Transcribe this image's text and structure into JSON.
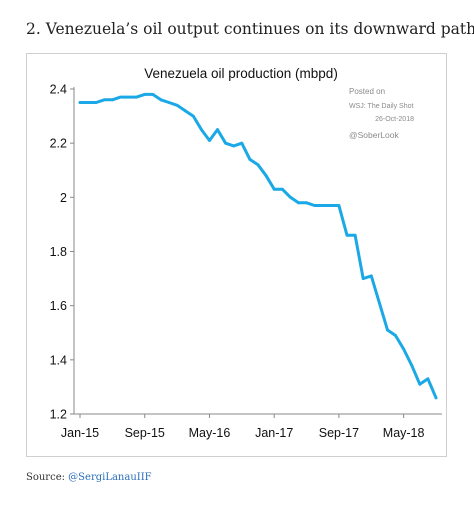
{
  "article": {
    "heading": "2. Venezuela’s oil output continues on its downward path.",
    "source_label": "Source: ",
    "source_link": "@SergiLanauIIF"
  },
  "chart_data": {
    "type": "line",
    "title": "Venezuela oil production (mbpd)",
    "xlabel": "",
    "ylabel": "",
    "ylim": [
      1.2,
      2.4
    ],
    "yticks": [
      1.2,
      1.4,
      1.6,
      1.8,
      2,
      2.2,
      2.4
    ],
    "ytick_labels": [
      "1.2",
      "1.4",
      "1.6",
      "1.8",
      "2",
      "2.2",
      "2.4"
    ],
    "x_tick_labels": [
      {
        "label": "Jan-15",
        "index": 0
      },
      {
        "label": "Sep-15",
        "index": 8
      },
      {
        "label": "May-16",
        "index": 16
      },
      {
        "label": "Jan-17",
        "index": 24
      },
      {
        "label": "Sep-17",
        "index": 32
      },
      {
        "label": "May-18",
        "index": 40
      }
    ],
    "grid": false,
    "line_color": "#1aa9e6",
    "annotations": {
      "posted_on": "Posted on",
      "source": "WSJ: The Daily Shot",
      "date": "26-Oct-2018",
      "handle": "@SoberLook"
    },
    "series": [
      {
        "values": [
          2.35,
          2.35,
          2.35,
          2.36,
          2.36,
          2.37,
          2.37,
          2.37,
          2.38,
          2.38,
          2.36,
          2.35,
          2.34,
          2.32,
          2.3,
          2.25,
          2.21,
          2.25,
          2.2,
          2.19,
          2.2,
          2.14,
          2.12,
          2.08,
          2.03,
          2.03,
          2.0,
          1.98,
          1.98,
          1.97,
          1.97,
          1.97,
          1.97,
          1.86,
          1.86,
          1.7,
          1.71,
          1.61,
          1.51,
          1.49,
          1.44,
          1.38,
          1.31,
          1.33,
          1.26
        ]
      }
    ]
  }
}
